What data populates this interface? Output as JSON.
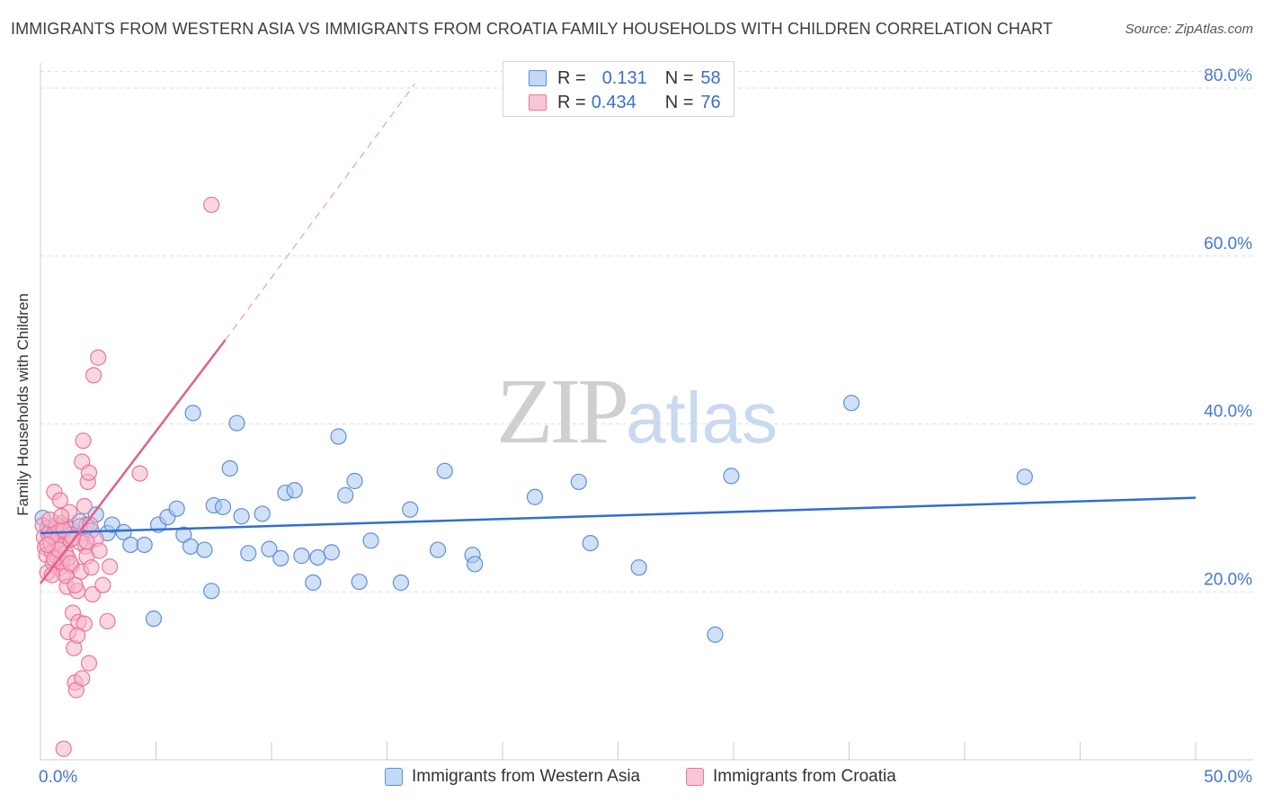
{
  "title": "IMMIGRANTS FROM WESTERN ASIA VS IMMIGRANTS FROM CROATIA FAMILY HOUSEHOLDS WITH CHILDREN CORRELATION CHART",
  "source": "Source: ZipAtlas.com",
  "watermark": {
    "zip": "ZIP",
    "atlas": "atlas"
  },
  "legend": {
    "r_label": "R =",
    "n_label": "N =",
    "series1": {
      "r": "0.131",
      "n": "58"
    },
    "series2": {
      "r": "0.434",
      "n": "76"
    }
  },
  "colors": {
    "blue_fill": "#aac8f0",
    "blue_stroke": "#5d8fd6",
    "blue_line": "#2f6fcf",
    "pink_fill": "#f7b4c8",
    "pink_stroke": "#e8769b",
    "pink_line": "#e0608c",
    "axis_text": "#4477cc",
    "grid": "#dddddd"
  },
  "chart_data": {
    "type": "scatter",
    "title": "IMMIGRANTS FROM WESTERN ASIA VS IMMIGRANTS FROM CROATIA FAMILY HOUSEHOLDS WITH CHILDREN CORRELATION CHART",
    "xlabel": "",
    "ylabel": "Family Households with Children",
    "xlim": [
      0,
      50
    ],
    "ylim": [
      0,
      83
    ],
    "x_tick_labels": [
      {
        "value": 0,
        "label": "0.0%"
      },
      {
        "value": 50,
        "label": "50.0%"
      }
    ],
    "x_minor_ticks": [
      0,
      5,
      10,
      15,
      20,
      25,
      30,
      35,
      40,
      45,
      50
    ],
    "y_ticks": [
      {
        "value": 20,
        "label": "20.0%"
      },
      {
        "value": 40,
        "label": "40.0%"
      },
      {
        "value": 60,
        "label": "60.0%"
      },
      {
        "value": 80,
        "label": "80.0%"
      }
    ],
    "grid": true,
    "series": [
      {
        "name": "Immigrants from Western Asia",
        "color": "blue",
        "trend": {
          "x0": 0,
          "y0": 27.0,
          "x1": 50,
          "y1": 31.2,
          "dashed_to": null
        },
        "points": [
          [
            0.1,
            28.8
          ],
          [
            0.3,
            27.6
          ],
          [
            0.5,
            27.2
          ],
          [
            0.8,
            27.9
          ],
          [
            1.0,
            26.8
          ],
          [
            1.3,
            27.5
          ],
          [
            1.7,
            28.4
          ],
          [
            2.0,
            28.0
          ],
          [
            2.4,
            29.2
          ],
          [
            2.9,
            27.0
          ],
          [
            3.1,
            28.0
          ],
          [
            3.6,
            27.1
          ],
          [
            3.9,
            25.6
          ],
          [
            4.5,
            25.6
          ],
          [
            4.9,
            16.8
          ],
          [
            5.1,
            28.0
          ],
          [
            5.5,
            28.9
          ],
          [
            5.9,
            29.9
          ],
          [
            6.2,
            26.8
          ],
          [
            6.5,
            25.4
          ],
          [
            6.6,
            41.3
          ],
          [
            7.1,
            25.0
          ],
          [
            7.4,
            20.1
          ],
          [
            7.5,
            30.3
          ],
          [
            7.9,
            30.1
          ],
          [
            8.2,
            34.7
          ],
          [
            8.5,
            40.1
          ],
          [
            8.7,
            29.0
          ],
          [
            9.0,
            24.6
          ],
          [
            9.6,
            29.3
          ],
          [
            9.9,
            25.1
          ],
          [
            10.4,
            24.0
          ],
          [
            10.6,
            31.8
          ],
          [
            11.0,
            32.1
          ],
          [
            11.3,
            24.3
          ],
          [
            11.8,
            21.1
          ],
          [
            12.0,
            24.1
          ],
          [
            12.6,
            24.7
          ],
          [
            12.9,
            38.5
          ],
          [
            13.2,
            31.5
          ],
          [
            13.6,
            33.2
          ],
          [
            13.8,
            21.2
          ],
          [
            14.3,
            26.1
          ],
          [
            15.6,
            21.1
          ],
          [
            16.0,
            29.8
          ],
          [
            17.2,
            25.0
          ],
          [
            17.5,
            34.4
          ],
          [
            18.7,
            24.4
          ],
          [
            18.8,
            23.3
          ],
          [
            21.4,
            31.3
          ],
          [
            23.3,
            33.1
          ],
          [
            23.8,
            25.8
          ],
          [
            25.9,
            22.9
          ],
          [
            29.2,
            14.9
          ],
          [
            29.9,
            33.8
          ],
          [
            35.1,
            42.5
          ],
          [
            42.6,
            33.7
          ],
          [
            2.2,
            27.3
          ]
        ]
      },
      {
        "name": "Immigrants from Croatia",
        "color": "pink",
        "trend": {
          "x0": 0,
          "y0": 21.0,
          "x1": 8.0,
          "y1": 50.0,
          "dashed_to": {
            "x": 16.2,
            "y": 80.5
          }
        },
        "points": [
          [
            0.1,
            27.9
          ],
          [
            0.15,
            26.5
          ],
          [
            0.2,
            25.3
          ],
          [
            0.25,
            24.4
          ],
          [
            0.3,
            22.3
          ],
          [
            0.35,
            26.9
          ],
          [
            0.4,
            27.2
          ],
          [
            0.45,
            25.8
          ],
          [
            0.5,
            24.7
          ],
          [
            0.55,
            23.4
          ],
          [
            0.6,
            31.9
          ],
          [
            0.65,
            27.6
          ],
          [
            0.7,
            26.1
          ],
          [
            0.75,
            24.1
          ],
          [
            0.8,
            22.8
          ],
          [
            0.85,
            30.9
          ],
          [
            0.9,
            28.2
          ],
          [
            0.95,
            25.6
          ],
          [
            1.0,
            22.2
          ],
          [
            1.05,
            27.1
          ],
          [
            1.1,
            24.6
          ],
          [
            1.15,
            20.6
          ],
          [
            1.2,
            15.2
          ],
          [
            1.25,
            29.5
          ],
          [
            1.3,
            26.2
          ],
          [
            1.35,
            23.1
          ],
          [
            1.4,
            17.5
          ],
          [
            1.45,
            13.3
          ],
          [
            1.5,
            9.2
          ],
          [
            1.55,
            8.3
          ],
          [
            1.6,
            20.1
          ],
          [
            1.65,
            16.4
          ],
          [
            1.7,
            27.8
          ],
          [
            1.75,
            22.4
          ],
          [
            1.8,
            35.5
          ],
          [
            1.85,
            38.0
          ],
          [
            1.9,
            30.2
          ],
          [
            1.95,
            25.4
          ],
          [
            2.0,
            24.2
          ],
          [
            2.05,
            33.1
          ],
          [
            2.1,
            34.2
          ],
          [
            2.15,
            28.0
          ],
          [
            2.2,
            22.9
          ],
          [
            2.25,
            19.7
          ],
          [
            2.3,
            45.8
          ],
          [
            2.4,
            26.3
          ],
          [
            2.5,
            47.9
          ],
          [
            2.55,
            24.9
          ],
          [
            2.7,
            20.8
          ],
          [
            2.9,
            16.5
          ],
          [
            3.0,
            23.0
          ],
          [
            4.3,
            34.1
          ],
          [
            7.4,
            66.1
          ],
          [
            0.5,
            26.6
          ],
          [
            0.7,
            28.0
          ],
          [
            0.9,
            23.6
          ],
          [
            1.1,
            21.9
          ],
          [
            1.3,
            26.8
          ],
          [
            1.5,
            20.8
          ],
          [
            1.7,
            25.9
          ],
          [
            1.9,
            16.2
          ],
          [
            2.1,
            11.5
          ],
          [
            0.4,
            28.6
          ],
          [
            0.6,
            23.9
          ],
          [
            0.8,
            25.0
          ],
          [
            1.0,
            27.4
          ],
          [
            1.2,
            24.0
          ],
          [
            1.4,
            26.4
          ],
          [
            1.6,
            14.8
          ],
          [
            1.8,
            9.7
          ],
          [
            2.0,
            26.0
          ],
          [
            1.0,
            1.3
          ],
          [
            0.3,
            25.6
          ],
          [
            0.5,
            22.0
          ],
          [
            0.9,
            29.0
          ],
          [
            1.3,
            23.4
          ]
        ]
      }
    ]
  },
  "bottom_legend": {
    "series1_label": "Immigrants from Western Asia",
    "series2_label": "Immigrants from Croatia"
  }
}
